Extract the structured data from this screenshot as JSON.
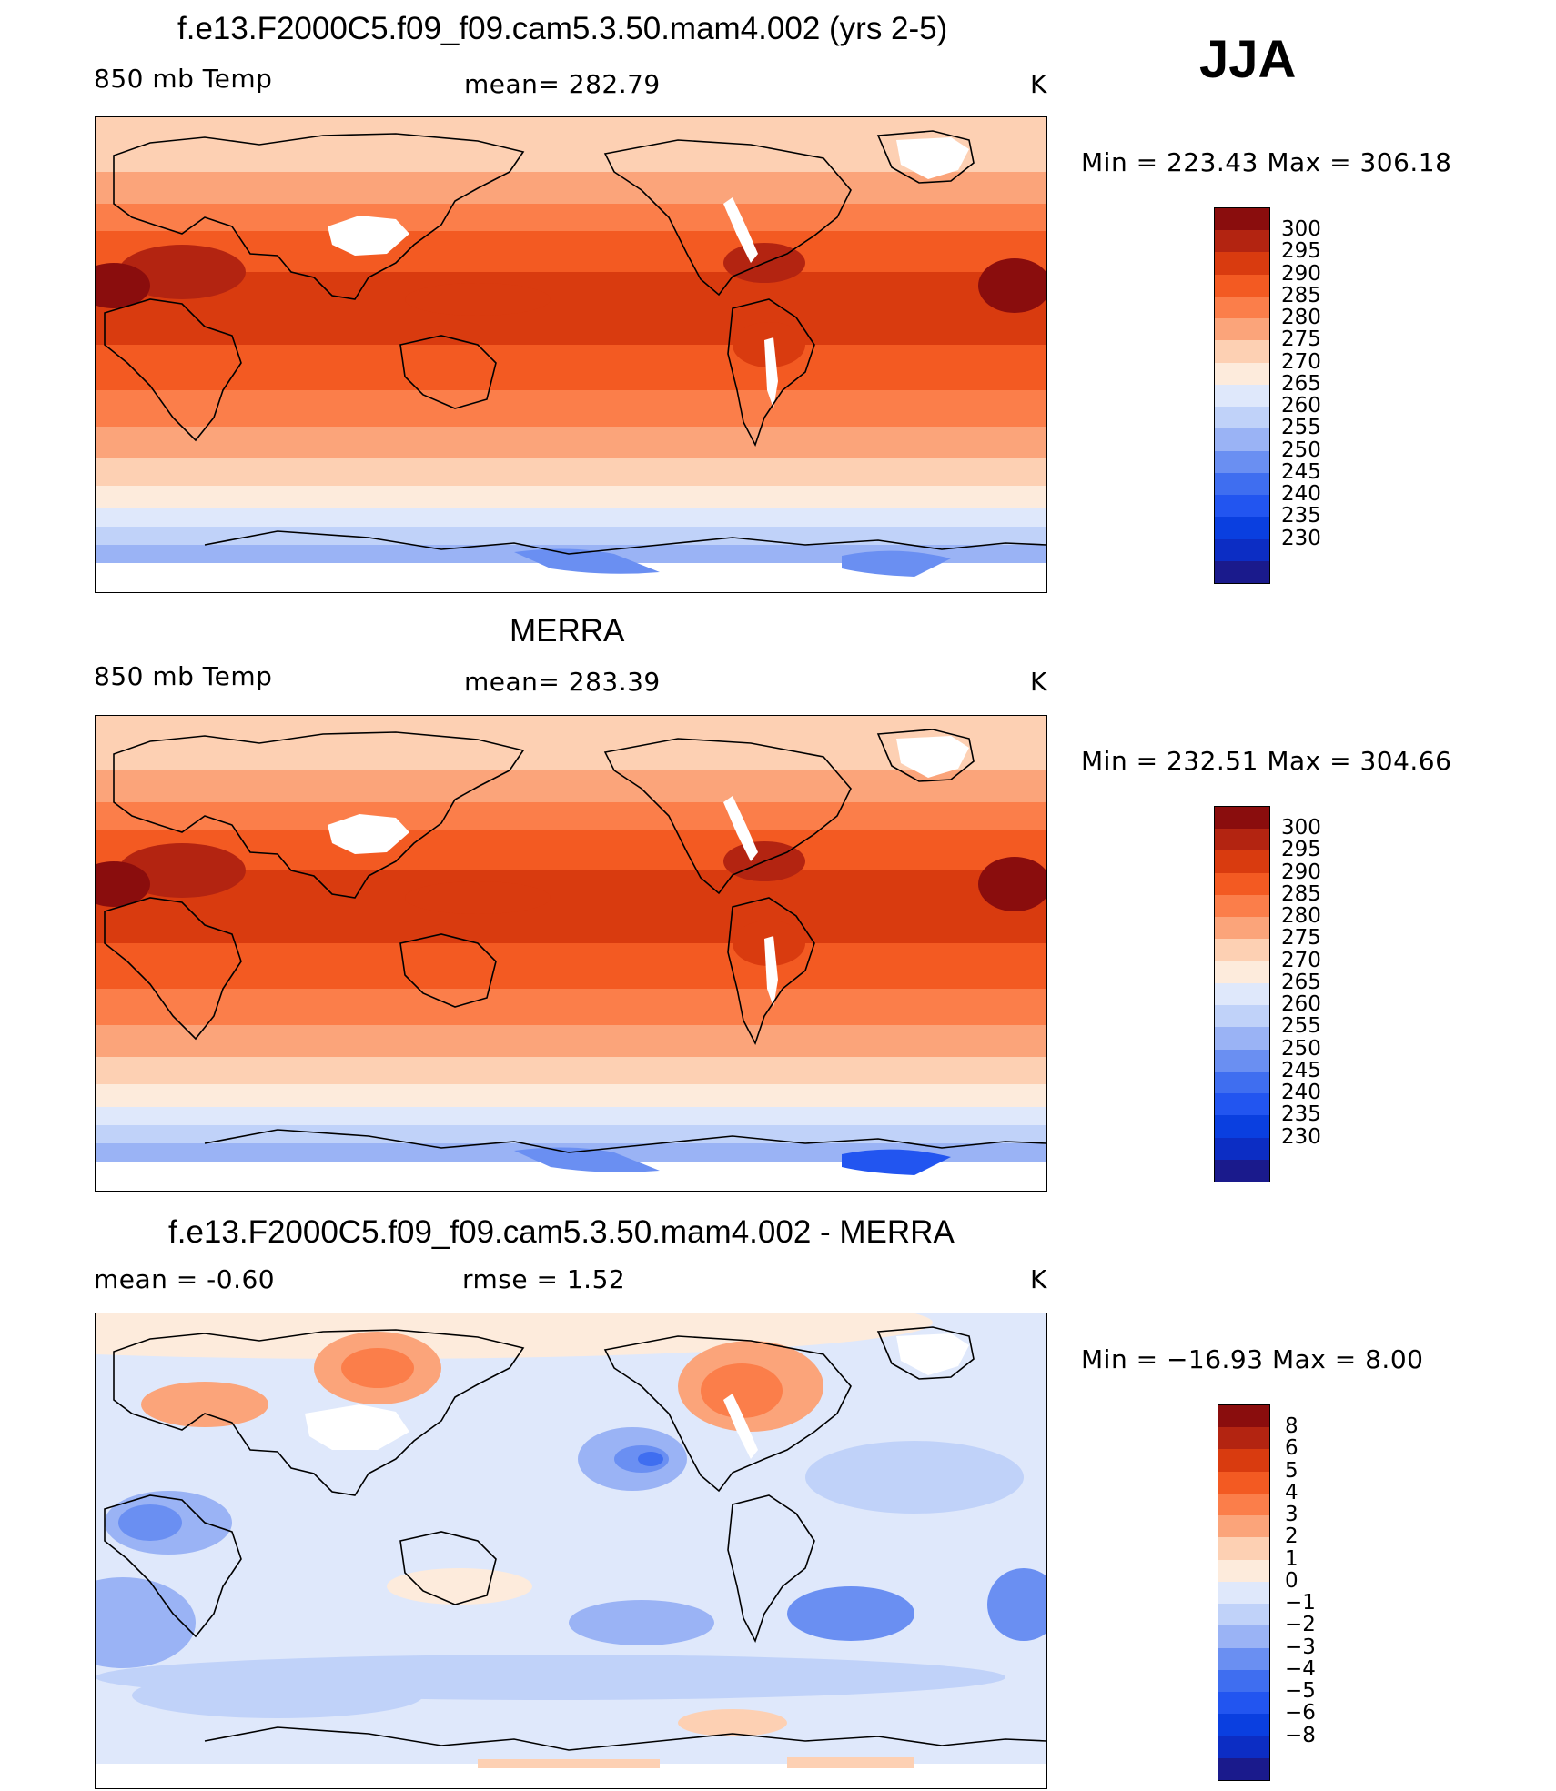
{
  "header": {
    "season": "JJA"
  },
  "palette_temp": [
    "#1a1a8c",
    "#0c2dc4",
    "#0a3fe0",
    "#2255f0",
    "#3f6ef0",
    "#6a8ff2",
    "#9ab3f5",
    "#c0d2f9",
    "#dfe8fb",
    "#fdebdc",
    "#fdd0b3",
    "#fba47a",
    "#fb7e4a",
    "#f35a22",
    "#d93b0f",
    "#b32411",
    "#8a0d0d"
  ],
  "palette_diff": [
    "#1a1a8c",
    "#0c2dc4",
    "#0a3fe0",
    "#2255f0",
    "#3f6ef0",
    "#6a8ff2",
    "#9ab3f5",
    "#c0d2f9",
    "#dfe8fb",
    "#fdebdc",
    "#fdd0b3",
    "#fba47a",
    "#fb7e4a",
    "#f35a22",
    "#d93b0f",
    "#b32411",
    "#8a0d0d"
  ],
  "panels": [
    {
      "title": "f.e13.F2000C5.f09_f09.cam5.3.50.mam4.002 (yrs 2-5)",
      "left_label": "850 mb Temp",
      "center_label": "mean= 282.79",
      "units": "K",
      "minmax": "Min = 223.43 Max = 306.18",
      "colorbar": {
        "ticks": [
          "300",
          "295",
          "290",
          "285",
          "280",
          "275",
          "270",
          "265",
          "260",
          "255",
          "250",
          "245",
          "240",
          "235",
          "230"
        ]
      }
    },
    {
      "title": "MERRA",
      "left_label": "850 mb Temp",
      "center_label": "mean= 283.39",
      "units": "K",
      "minmax": "Min = 232.51 Max = 304.66",
      "colorbar": {
        "ticks": [
          "300",
          "295",
          "290",
          "285",
          "280",
          "275",
          "270",
          "265",
          "260",
          "255",
          "250",
          "245",
          "240",
          "235",
          "230"
        ]
      }
    },
    {
      "title": "f.e13.F2000C5.f09_f09.cam5.3.50.mam4.002 - MERRA",
      "left_label": "mean = -0.60",
      "center_label": "rmse = 1.52",
      "units": "K",
      "minmax": "Min = −16.93 Max = 8.00",
      "colorbar": {
        "ticks": [
          "8",
          "6",
          "5",
          "4",
          "3",
          "2",
          "1",
          "0",
          "−1",
          "−2",
          "−3",
          "−4",
          "−5",
          "−6",
          "−8"
        ]
      }
    }
  ],
  "chart_data": [
    {
      "type": "heatmap",
      "title": "f.e13.F2000C5.f09_f09.cam5.3.50.mam4.002 (yrs 2-5)",
      "variable": "850 mb Temp",
      "units": "K",
      "mean": 282.79,
      "min": 223.43,
      "max": 306.18,
      "colorbar_levels": [
        230,
        235,
        240,
        245,
        250,
        255,
        260,
        265,
        270,
        275,
        280,
        285,
        290,
        295,
        300
      ],
      "zonal_band_levels_north_to_south": [
        270,
        275,
        280,
        285,
        290,
        290,
        285,
        280,
        275,
        270,
        265,
        260,
        250,
        245
      ]
    },
    {
      "type": "heatmap",
      "title": "MERRA",
      "variable": "850 mb Temp",
      "units": "K",
      "mean": 283.39,
      "min": 232.51,
      "max": 304.66,
      "colorbar_levels": [
        230,
        235,
        240,
        245,
        250,
        255,
        260,
        265,
        270,
        275,
        280,
        285,
        290,
        295,
        300
      ],
      "zonal_band_levels_north_to_south": [
        270,
        275,
        280,
        285,
        290,
        290,
        285,
        280,
        275,
        270,
        265,
        260,
        250,
        245
      ]
    },
    {
      "type": "heatmap",
      "title": "f.e13.F2000C5.f09_f09.cam5.3.50.mam4.002 - MERRA",
      "units": "K",
      "mean": -0.6,
      "rmse": 1.52,
      "min": -16.93,
      "max": 8.0,
      "colorbar_levels": [
        -8,
        -6,
        -5,
        -4,
        -3,
        -2,
        -1,
        0,
        1,
        2,
        3,
        4,
        5,
        6,
        8
      ]
    }
  ]
}
